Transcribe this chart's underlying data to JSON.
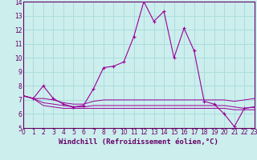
{
  "xlabel": "Windchill (Refroidissement éolien,°C)",
  "bg_color": "#cceeed",
  "grid_color": "#aadddd",
  "line_color": "#990099",
  "x_hours": [
    0,
    1,
    2,
    3,
    4,
    5,
    6,
    7,
    8,
    9,
    10,
    11,
    12,
    13,
    14,
    15,
    16,
    17,
    18,
    19,
    20,
    21,
    22,
    23
  ],
  "main_line": [
    7.3,
    7.1,
    8.0,
    7.1,
    6.7,
    6.5,
    6.6,
    7.8,
    9.3,
    9.4,
    9.7,
    11.5,
    14.0,
    12.6,
    13.3,
    10.0,
    12.1,
    10.5,
    6.9,
    6.7,
    6.0,
    5.1,
    6.4,
    6.5
  ],
  "line2": [
    7.3,
    7.1,
    7.1,
    7.0,
    6.8,
    6.7,
    6.7,
    6.9,
    7.0,
    7.0,
    7.0,
    7.0,
    7.0,
    7.0,
    7.0,
    7.0,
    7.0,
    7.0,
    7.0,
    7.0,
    7.0,
    6.9,
    7.0,
    7.1
  ],
  "line3": [
    7.3,
    7.1,
    6.8,
    6.7,
    6.6,
    6.5,
    6.5,
    6.6,
    6.6,
    6.6,
    6.6,
    6.6,
    6.6,
    6.6,
    6.6,
    6.6,
    6.6,
    6.6,
    6.6,
    6.6,
    6.6,
    6.5,
    6.4,
    6.5
  ],
  "line4": [
    7.3,
    7.1,
    6.6,
    6.5,
    6.4,
    6.4,
    6.4,
    6.4,
    6.4,
    6.4,
    6.4,
    6.4,
    6.4,
    6.4,
    6.4,
    6.4,
    6.4,
    6.4,
    6.4,
    6.4,
    6.4,
    6.3,
    6.3,
    6.3
  ],
  "ylim": [
    5,
    14
  ],
  "xlim": [
    0,
    23
  ],
  "yticks": [
    5,
    6,
    7,
    8,
    9,
    10,
    11,
    12,
    13,
    14
  ],
  "xticks": [
    0,
    1,
    2,
    3,
    4,
    5,
    6,
    7,
    8,
    9,
    10,
    11,
    12,
    13,
    14,
    15,
    16,
    17,
    18,
    19,
    20,
    21,
    22,
    23
  ],
  "tick_fontsize": 5.5,
  "xlabel_fontsize": 6.5
}
